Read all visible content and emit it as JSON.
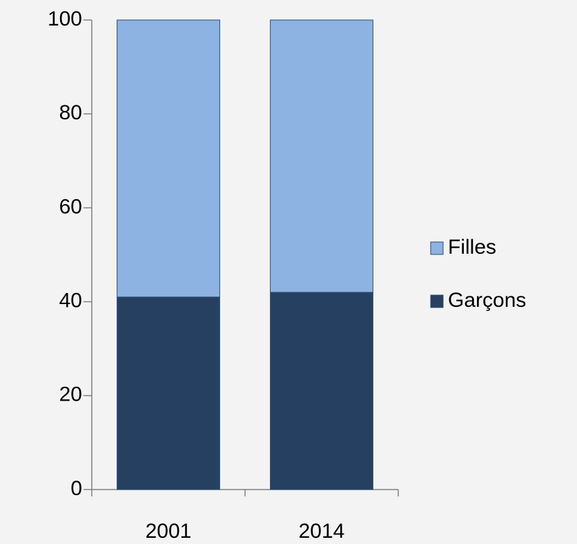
{
  "chart_data": {
    "type": "stacked_bar",
    "categories": [
      "2001",
      "2014"
    ],
    "series": [
      {
        "name": "Garçons",
        "color": "#254061",
        "values": [
          41,
          42
        ]
      },
      {
        "name": "Filles",
        "color": "#8db3e2",
        "values": [
          59,
          58
        ]
      }
    ],
    "ylim": [
      0,
      100
    ],
    "yticks": [
      0,
      20,
      40,
      60,
      80,
      100
    ],
    "legend": "right"
  }
}
